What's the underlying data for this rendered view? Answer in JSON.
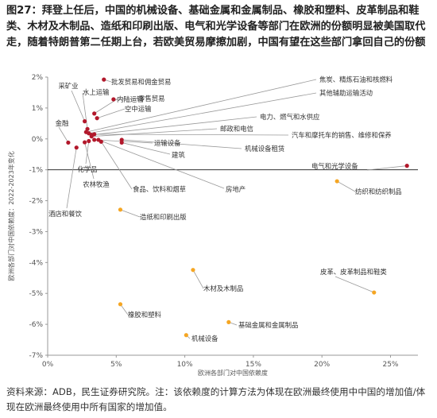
{
  "header": {
    "title": "图27：拜登上任后，中国的机械设备、基础金属和金属制品、橡胶和塑料、皮革制品和鞋类、木材及木制品、造纸和印刷出版、电气和光学设备等部门在欧洲的份额明显被美国取代走，随着特朗普第二任期上台，若欧美贸易摩擦加剧，中国有望在这些部门拿回自己的份额"
  },
  "footer": {
    "source": "资料来源：ADB，民生证券研究院。注：该依赖度的计算方法为体现在欧洲最终使用中中国的增加值/体现在欧洲最终使用中所有国家的增加值。"
  },
  "chart_data": {
    "type": "scatter",
    "xlabel": "欧洲各部门对中国依赖度",
    "ylabel": "欧洲各部门对中国依赖度：2022-2023年变化",
    "xlim": [
      0,
      0.27
    ],
    "ylim": [
      -0.07,
      0.02
    ],
    "x_ticks": [
      {
        "value": 0,
        "label": "0%"
      },
      {
        "value": 0.05,
        "label": "5%"
      },
      {
        "value": 0.1,
        "label": "10%"
      },
      {
        "value": 0.15,
        "label": "15%"
      },
      {
        "value": 0.2,
        "label": "20%"
      },
      {
        "value": 0.25,
        "label": "25%"
      }
    ],
    "y_ticks": [
      {
        "value": 0.02,
        "label": "2%"
      },
      {
        "value": 0.01,
        "label": "1%"
      },
      {
        "value": 0,
        "label": "0%"
      },
      {
        "value": -0.01,
        "label": "-1%"
      },
      {
        "value": -0.02,
        "label": "-2%"
      },
      {
        "value": -0.03,
        "label": "-3%"
      },
      {
        "value": -0.04,
        "label": "-4%"
      },
      {
        "value": -0.05,
        "label": "-5%"
      },
      {
        "value": -0.06,
        "label": "-6%"
      },
      {
        "value": -0.07,
        "label": "-7%"
      }
    ],
    "reference_line_y": -0.01,
    "grid": false,
    "colors": {
      "red": "#b2182b",
      "orange": "#f5a623",
      "leader": "#9a9a9a",
      "axis": "#999999",
      "ref": "#333333"
    },
    "points": [
      {
        "name": "批发贸易和佣金贸易",
        "x": 0.041,
        "y": 0.0192,
        "color": "red"
      },
      {
        "name": "零售贸易",
        "x": 0.048,
        "y": 0.0128,
        "color": "red"
      },
      {
        "name": "采矿业",
        "x": 0.027,
        "y": 0.0057,
        "color": "red"
      },
      {
        "name": "水上运输",
        "x": 0.029,
        "y": 0.0032,
        "color": "red"
      },
      {
        "name": "内陆运输",
        "x": 0.034,
        "y": 0.0082,
        "color": "red"
      },
      {
        "name": "空中运输",
        "x": 0.036,
        "y": 0.0067,
        "color": "red"
      },
      {
        "name": "金融",
        "x": 0.015,
        "y": -0.0012,
        "color": "red"
      },
      {
        "name": "焦炭、精炼石油和核燃料",
        "x": 0.028,
        "y": 0.0022,
        "color": "red"
      },
      {
        "name": "其他辅助运输活动",
        "x": 0.03,
        "y": 0.0018,
        "color": "red"
      },
      {
        "name": "电力、燃气和水供应",
        "x": 0.032,
        "y": 0.0013,
        "color": "red"
      },
      {
        "name": "邮政和电信",
        "x": 0.032,
        "y": 0.0008,
        "color": "red"
      },
      {
        "name": "汽车和摩托车的销售、维修和保养",
        "x": 0.034,
        "y": 0.0015,
        "color": "red"
      },
      {
        "name": "运输设备",
        "x": 0.034,
        "y": -0.0003,
        "color": "red"
      },
      {
        "name": "机械设备租赁",
        "x": 0.054,
        "y": -0.0003,
        "color": "red"
      },
      {
        "name": "建筑",
        "x": 0.054,
        "y": -0.0012,
        "color": "red"
      },
      {
        "name": "化学品",
        "x": 0.03,
        "y": -0.0007,
        "color": "red"
      },
      {
        "name": "农林牧渔",
        "x": 0.027,
        "y": -0.0011,
        "color": "red"
      },
      {
        "name": "酒店和餐饮",
        "x": 0.021,
        "y": -0.0028,
        "color": "red"
      },
      {
        "name": "食品、饮料和烟草",
        "x": 0.039,
        "y": -0.0009,
        "color": "red"
      },
      {
        "name": "房地产",
        "x": 0.037,
        "y": -0.0003,
        "color": "red"
      },
      {
        "name": "电气和光学设备",
        "x": 0.262,
        "y": -0.0087,
        "color": "red"
      },
      {
        "name": "纺织和纺织制品",
        "x": 0.211,
        "y": -0.0137,
        "color": "orange"
      },
      {
        "name": "造纸和印刷出版",
        "x": 0.053,
        "y": -0.0229,
        "color": "orange"
      },
      {
        "name": "木材及木制品",
        "x": 0.106,
        "y": -0.0424,
        "color": "orange"
      },
      {
        "name": "皮革、皮革制品和鞋类",
        "x": 0.238,
        "y": -0.0497,
        "color": "orange"
      },
      {
        "name": "橡胶和塑料",
        "x": 0.053,
        "y": -0.0535,
        "color": "orange"
      },
      {
        "name": "基础金属和金属制品",
        "x": 0.132,
        "y": -0.0593,
        "color": "orange"
      },
      {
        "name": "机械设备",
        "x": 0.101,
        "y": -0.0635,
        "color": "orange"
      }
    ]
  }
}
